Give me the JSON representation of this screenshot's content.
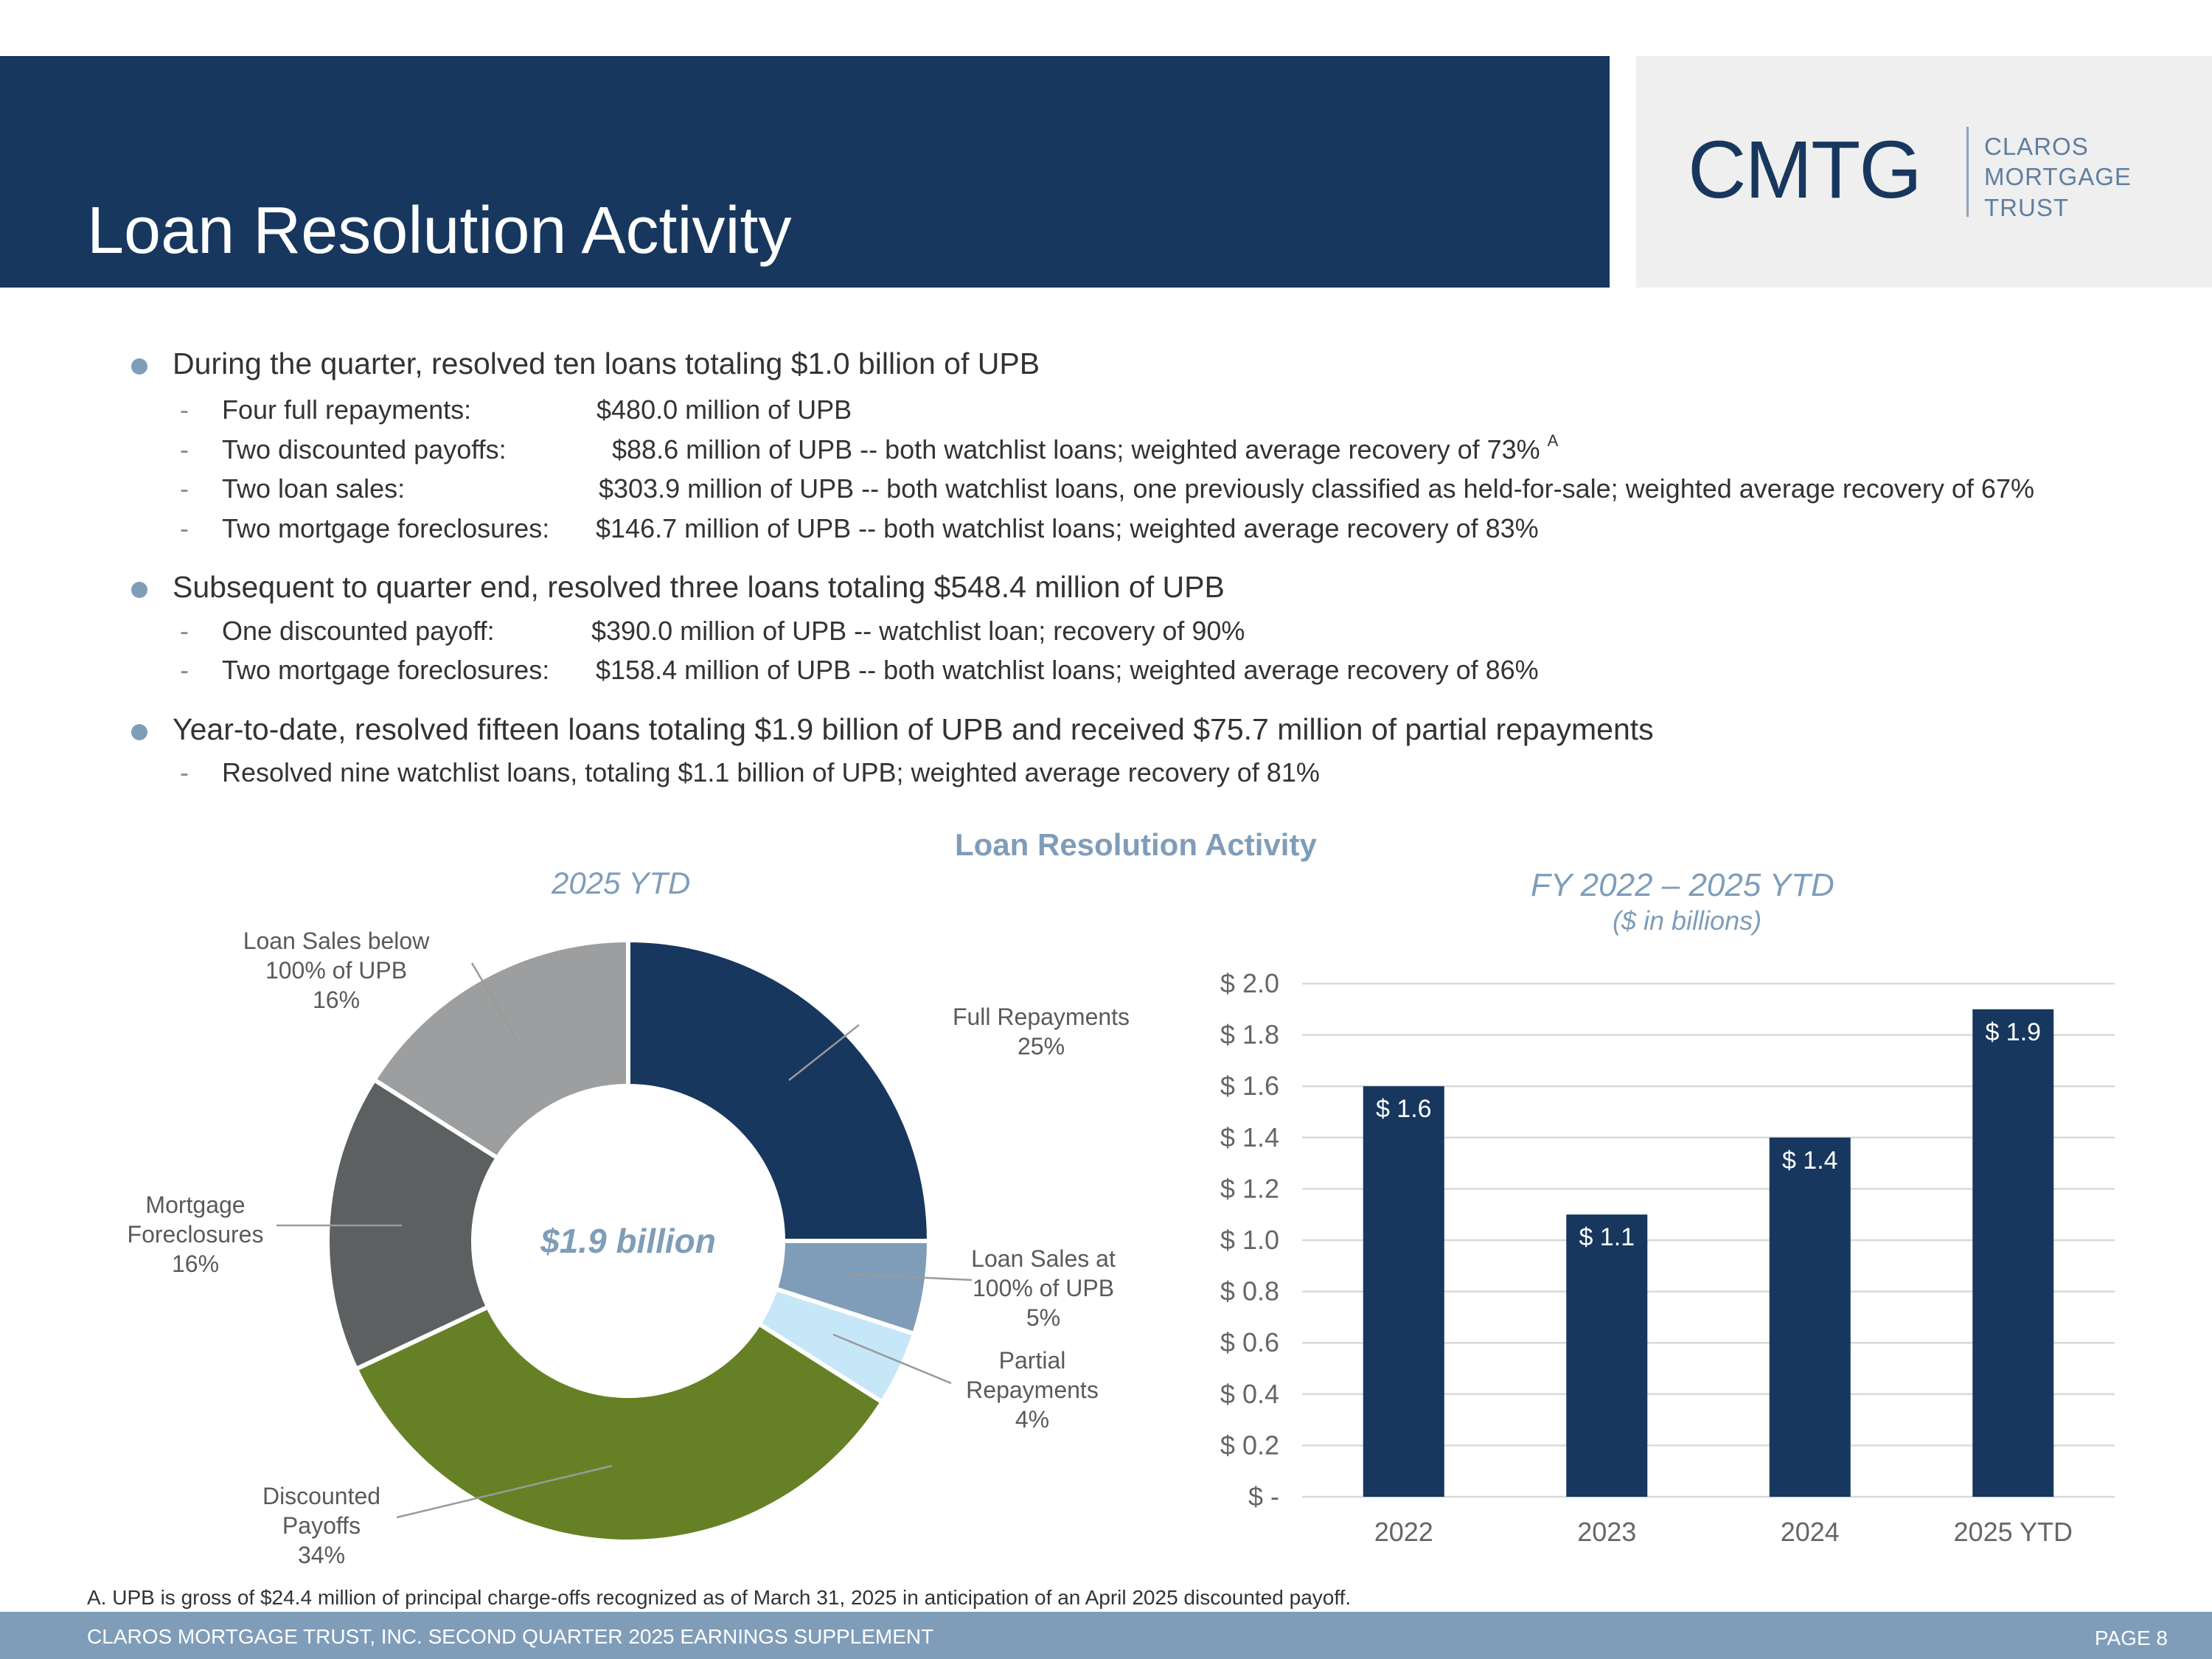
{
  "header": {
    "title": "Loan Resolution Activity",
    "logo_mark": "CMTG",
    "logo_name": [
      "CLAROS",
      "MORTGAGE",
      "TRUST"
    ]
  },
  "bullets": [
    {
      "text": "During the quarter, resolved ten loans totaling $1.0 billion of UPB",
      "subs": [
        {
          "dash": "-",
          "label": "Four full repayments:",
          "value": "$480.0 million of UPB"
        },
        {
          "dash": "-",
          "label": "Two discounted payoffs:",
          "value": "$88.6 million of UPB -- both watchlist loans; weighted average recovery of 73%",
          "note": "A"
        },
        {
          "dash": "-",
          "label": "Two loan sales:",
          "value": "$303.9 million of UPB -- both watchlist loans, one previously classified as held-for-sale; weighted average recovery of 67%"
        },
        {
          "dash": "-",
          "label": "Two mortgage foreclosures:",
          "value": "$146.7 million of UPB -- both watchlist loans; weighted average recovery of 83%"
        }
      ]
    },
    {
      "text": "Subsequent to quarter end, resolved three loans totaling $548.4 million of UPB",
      "subs": [
        {
          "dash": "-",
          "label": "One discounted payoff:",
          "value": "$390.0 million of UPB -- watchlist loan; recovery of 90%"
        },
        {
          "dash": "-",
          "label": "Two mortgage foreclosures:",
          "value": "$158.4 million of UPB -- both watchlist loans; weighted average recovery of 86%"
        }
      ]
    },
    {
      "text": "Year-to-date, resolved fifteen loans totaling $1.9 billion of UPB and received $75.7 million of partial repayments",
      "subs": [
        {
          "dash": "-",
          "label": "Resolved nine watchlist loans, totaling $1.1 billion of UPB; weighted average recovery of 81%",
          "value": ""
        }
      ]
    }
  ],
  "chart_section_title": "Loan Resolution Activity",
  "chart_data": [
    {
      "type": "pie",
      "title": "2025 YTD",
      "center_label": "$1.9 billion",
      "slices": [
        {
          "label": "Full Repayments",
          "pct_label": "25%",
          "value": 25,
          "color": "#17375e"
        },
        {
          "label": "Loan Sales at 100% of UPB",
          "pct_label": "5%",
          "value": 5,
          "color": "#7f9db9"
        },
        {
          "label": "Partial Repayments",
          "pct_label": "4%",
          "value": 4,
          "color": "#c6e7f7"
        },
        {
          "label": "Discounted Payoffs",
          "pct_label": "34%",
          "value": 34,
          "color": "#668125"
        },
        {
          "label": "Mortgage Foreclosures",
          "pct_label": "16%",
          "value": 16,
          "color": "#5d6061"
        },
        {
          "label": "Loan Sales below 100% of UPB",
          "pct_label": "16%",
          "value": 16,
          "color": "#9d9e9f"
        }
      ]
    },
    {
      "type": "bar",
      "title": "FY 2022 – 2025 YTD",
      "subtitle": "($ in billions)",
      "categories": [
        "2022",
        "2023",
        "2024",
        "2025 YTD"
      ],
      "values": [
        1.6,
        1.1,
        1.4,
        1.9
      ],
      "data_labels": [
        "$ 1.6",
        "$ 1.1",
        "$ 1.4",
        "$ 1.9"
      ],
      "ylim": [
        0,
        2.0
      ],
      "yticks": [
        0,
        0.2,
        0.4,
        0.6,
        0.8,
        1.0,
        1.2,
        1.4,
        1.6,
        1.8,
        2.0
      ],
      "ytick_labels": [
        "$ -",
        "$ 0.2",
        "$ 0.4",
        "$ 0.6",
        "$ 0.8",
        "$ 1.0",
        "$ 1.2",
        "$ 1.4",
        "$ 1.6",
        "$ 1.8",
        "$ 2.0"
      ],
      "bar_color": "#17375e",
      "grid": true
    }
  ],
  "footnote": "A. UPB is gross of $24.4 million of principal charge-offs recognized as of March 31, 2025 in anticipation of an April 2025 discounted payoff.",
  "footer": {
    "left": "CLAROS MORTGAGE TRUST, INC. SECOND QUARTER 2025 EARNINGS SUPPLEMENT",
    "right": "PAGE 8"
  }
}
